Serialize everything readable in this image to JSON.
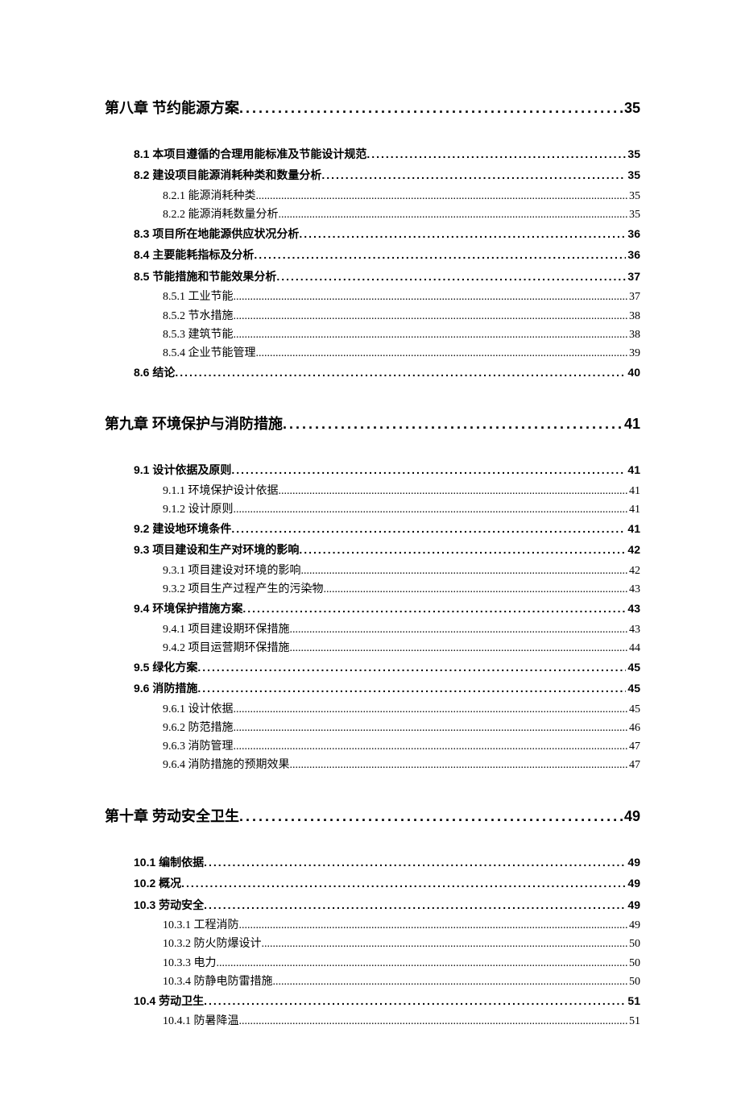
{
  "toc": [
    {
      "level": 1,
      "label": "第八章  节约能源方案",
      "page": "35"
    },
    {
      "level": 2,
      "label": "8.1 本项目遵循的合理用能标准及节能设计规范",
      "page": "35"
    },
    {
      "level": 2,
      "label": "8.2 建设项目能源消耗种类和数量分析",
      "page": "35"
    },
    {
      "level": 3,
      "label": "8.2.1 能源消耗种类",
      "page": "35"
    },
    {
      "level": 3,
      "label": "8.2.2 能源消耗数量分析",
      "page": "35"
    },
    {
      "level": 2,
      "label": "8.3 项目所在地能源供应状况分析",
      "page": "36"
    },
    {
      "level": 2,
      "label": "8.4 主要能耗指标及分析",
      "page": "36"
    },
    {
      "level": 2,
      "label": "8.5 节能措施和节能效果分析",
      "page": "37"
    },
    {
      "level": 3,
      "label": "8.5.1 工业节能",
      "page": "37"
    },
    {
      "level": 3,
      "label": "8.5.2 节水措施",
      "page": "38"
    },
    {
      "level": 3,
      "label": "8.5.3 建筑节能",
      "page": "38"
    },
    {
      "level": 3,
      "label": "8.5.4 企业节能管理",
      "page": "39"
    },
    {
      "level": 2,
      "label": "8.6 结论",
      "page": "40"
    },
    {
      "level": 1,
      "label": "第九章  环境保护与消防措施",
      "page": "41"
    },
    {
      "level": 2,
      "label": "9.1 设计依据及原则",
      "page": "41"
    },
    {
      "level": 3,
      "label": "9.1.1 环境保护设计依据",
      "page": "41"
    },
    {
      "level": 3,
      "label": "9.1.2 设计原则",
      "page": "41"
    },
    {
      "level": 2,
      "label": "9.2 建设地环境条件",
      "page": "41"
    },
    {
      "level": 2,
      "label": "9.3  项目建设和生产对环境的影响",
      "page": "42"
    },
    {
      "level": 3,
      "label": "9.3.1  项目建设对环境的影响",
      "page": "42"
    },
    {
      "level": 3,
      "label": "9.3.2 项目生产过程产生的污染物",
      "page": "43"
    },
    {
      "level": 2,
      "label": "9.4  环境保护措施方案",
      "page": "43"
    },
    {
      "level": 3,
      "label": "9.4.1  项目建设期环保措施",
      "page": "43"
    },
    {
      "level": 3,
      "label": "9.4.2  项目运营期环保措施",
      "page": "44"
    },
    {
      "level": 2,
      "label": "9.5 绿化方案",
      "page": "45"
    },
    {
      "level": 2,
      "label": "9.6 消防措施",
      "page": "45"
    },
    {
      "level": 3,
      "label": "9.6.1 设计依据",
      "page": "45"
    },
    {
      "level": 3,
      "label": "9.6.2 防范措施",
      "page": "46"
    },
    {
      "level": 3,
      "label": "9.6.3 消防管理",
      "page": "47"
    },
    {
      "level": 3,
      "label": "9.6.4 消防措施的预期效果",
      "page": "47"
    },
    {
      "level": 1,
      "label": "第十章  劳动安全卫生",
      "page": "49"
    },
    {
      "level": 2,
      "label": "10.1  编制依据",
      "page": "49"
    },
    {
      "level": 2,
      "label": "10.2  概况",
      "page": "49"
    },
    {
      "level": 2,
      "label": "10.3  劳动安全",
      "page": "49"
    },
    {
      "level": 3,
      "label": "10.3.1 工程消防",
      "page": "49"
    },
    {
      "level": 3,
      "label": "10.3.2 防火防爆设计",
      "page": "50"
    },
    {
      "level": 3,
      "label": "10.3.3 电力",
      "page": "50"
    },
    {
      "level": 3,
      "label": "10.3.4 防静电防雷措施",
      "page": "50"
    },
    {
      "level": 2,
      "label": "10.4 劳动卫生",
      "page": "51"
    },
    {
      "level": 3,
      "label": "10.4.1 防暑降温",
      "page": "51"
    }
  ]
}
